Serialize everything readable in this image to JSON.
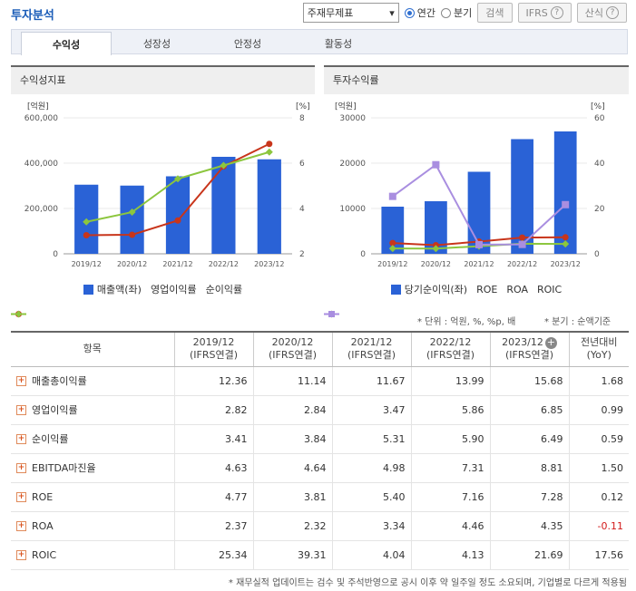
{
  "header": {
    "title": "투자분석",
    "select_value": "주재무제표",
    "radio_annual": "연간",
    "radio_quarter": "분기",
    "search_label": "검색",
    "ifrs_label": "IFRS",
    "calc_label": "산식"
  },
  "tabs": [
    {
      "label": "수익성"
    },
    {
      "label": "성장성"
    },
    {
      "label": "안정성"
    },
    {
      "label": "활동성"
    }
  ],
  "left_panel": {
    "title": "수익성지표"
  },
  "right_panel": {
    "title": "투자수익률"
  },
  "chart_data": [
    {
      "type": "bar",
      "categories": [
        "2019/12",
        "2020/12",
        "2021/12",
        "2022/12",
        "2023/12"
      ],
      "left_unit": "[억원]",
      "right_unit": "[%]",
      "y_left_ticks": [
        "0",
        "200,000",
        "400,000",
        "600,000"
      ],
      "y_right_ticks": [
        "2",
        "4",
        "6",
        "8"
      ],
      "ylim_left": [
        0,
        600000
      ],
      "ylim_right": [
        2,
        8
      ],
      "series": [
        {
          "name": "매출액(좌)",
          "type": "bar",
          "axis": "left",
          "color": "#2a62d6",
          "values": [
            305000,
            301000,
            342000,
            428000,
            417000
          ]
        },
        {
          "name": "영업이익률",
          "type": "line",
          "axis": "right",
          "color": "#c8351b",
          "values": [
            2.82,
            2.84,
            3.47,
            5.86,
            6.85
          ]
        },
        {
          "name": "순이익률",
          "type": "line",
          "axis": "right",
          "color": "#8cc63e",
          "values": [
            3.41,
            3.84,
            5.31,
            5.9,
            6.49
          ]
        }
      ]
    },
    {
      "type": "bar",
      "categories": [
        "2019/12",
        "2020/12",
        "2021/12",
        "2022/12",
        "2023/12"
      ],
      "left_unit": "[억원]",
      "right_unit": "[%]",
      "y_left_ticks": [
        "0",
        "10000",
        "20000",
        "30000"
      ],
      "y_right_ticks": [
        "0",
        "20",
        "40",
        "60"
      ],
      "ylim_left": [
        0,
        30000
      ],
      "ylim_right": [
        0,
        60
      ],
      "series": [
        {
          "name": "당기순이익(좌)",
          "type": "bar",
          "axis": "left",
          "color": "#2a62d6",
          "values": [
            10400,
            11600,
            18100,
            25300,
            27000
          ]
        },
        {
          "name": "ROE",
          "type": "line",
          "axis": "right",
          "color": "#c8351b",
          "values": [
            4.77,
            3.81,
            5.4,
            7.16,
            7.28
          ]
        },
        {
          "name": "ROA",
          "type": "line",
          "axis": "right",
          "color": "#8cc63e",
          "values": [
            2.37,
            2.32,
            3.34,
            4.46,
            4.35
          ]
        },
        {
          "name": "ROIC",
          "type": "line",
          "axis": "right",
          "color": "#a98ee0",
          "values": [
            25.34,
            39.31,
            4.04,
            4.13,
            21.69
          ]
        }
      ]
    }
  ],
  "notes": {
    "unit": "* 단위 : 억원, %, %p, 배",
    "basis": "* 분기 : 순액기준"
  },
  "table": {
    "col_item": "항목",
    "columns": [
      {
        "line1": "2019/12",
        "line2": "(IFRS연결)"
      },
      {
        "line1": "2020/12",
        "line2": "(IFRS연결)"
      },
      {
        "line1": "2021/12",
        "line2": "(IFRS연결)"
      },
      {
        "line1": "2022/12",
        "line2": "(IFRS연결)"
      },
      {
        "line1": "2023/12",
        "line2": "(IFRS연결)"
      },
      {
        "line1": "전년대비",
        "line2": "(YoY)"
      }
    ],
    "rows": [
      {
        "label": "매출총이익률",
        "values": [
          "12.36",
          "11.14",
          "11.67",
          "13.99",
          "15.68",
          "1.68"
        ]
      },
      {
        "label": "영업이익률",
        "values": [
          "2.82",
          "2.84",
          "3.47",
          "5.86",
          "6.85",
          "0.99"
        ]
      },
      {
        "label": "순이익률",
        "values": [
          "3.41",
          "3.84",
          "5.31",
          "5.90",
          "6.49",
          "0.59"
        ]
      },
      {
        "label": "EBITDA마진율",
        "values": [
          "4.63",
          "4.64",
          "4.98",
          "7.31",
          "8.81",
          "1.50"
        ]
      },
      {
        "label": "ROE",
        "values": [
          "4.77",
          "3.81",
          "5.40",
          "7.16",
          "7.28",
          "0.12"
        ]
      },
      {
        "label": "ROA",
        "values": [
          "2.37",
          "2.32",
          "3.34",
          "4.46",
          "4.35",
          "-0.11"
        ]
      },
      {
        "label": "ROIC",
        "values": [
          "25.34",
          "39.31",
          "4.04",
          "4.13",
          "21.69",
          "17.56"
        ]
      }
    ]
  },
  "footnote": "* 재무실적 업데이트는 검수 및 주석반영으로 공시 이후 약 일주일 정도 소요되며, 기업별로 다르게 적용됨"
}
